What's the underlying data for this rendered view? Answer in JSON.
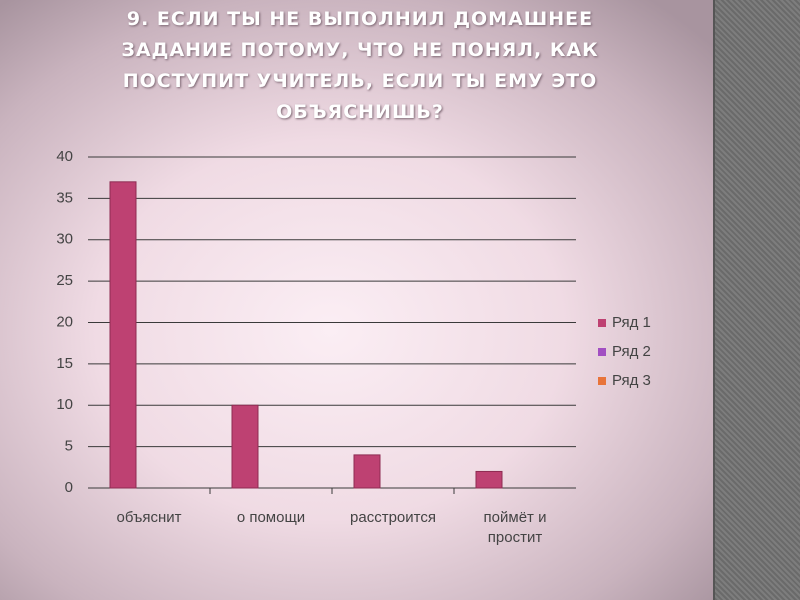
{
  "chart_data": {
    "type": "bar",
    "title": "9. ЕСЛИ ТЫ НЕ ВЫПОЛНИЛ ДОМАШНЕЕ\nЗАДАНИЕ ПОТОМУ, ЧТО НЕ ПОНЯЛ, КАК\nПОСТУПИТ УЧИТЕЛЬ, ЕСЛИ ТЫ ЕМУ ЭТО\nОБЪЯСНИШЬ?",
    "categories": [
      "объяснит",
      "о помощи",
      "расстроится",
      "поймёт и\nпростит"
    ],
    "series": [
      {
        "name": "Ряд 1",
        "color": "#be4172",
        "values": [
          37,
          10,
          4,
          2
        ]
      },
      {
        "name": "Ряд 2",
        "color": "#a24fc2",
        "values": [
          null,
          null,
          null,
          null
        ]
      },
      {
        "name": "Ряд 3",
        "color": "#e8743a",
        "values": [
          null,
          null,
          null,
          null
        ]
      }
    ],
    "ylim": [
      0,
      40
    ],
    "yticks": [
      0,
      5,
      10,
      15,
      20,
      25,
      30,
      35,
      40
    ],
    "grid": true,
    "legend": "right"
  }
}
